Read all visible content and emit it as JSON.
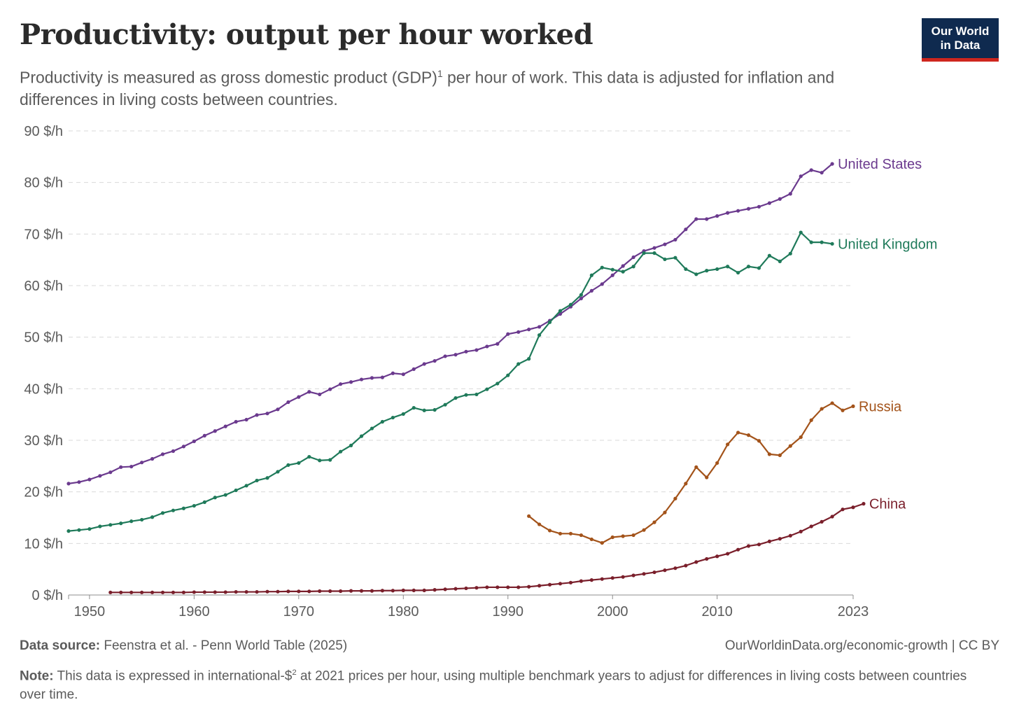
{
  "title": "Productivity: output per hour worked",
  "subtitle_pre": "Productivity is measured as gross domestic product (GDP)",
  "subtitle_sup": "1",
  "subtitle_post": " per hour of work. This data is adjusted for inflation and differences in living costs between countries.",
  "logo": {
    "line1": "Our World",
    "line2": "in Data",
    "bg_color": "#0f2a4f",
    "accent_color": "#ce261e"
  },
  "footer": {
    "source_label": "Data source:",
    "source_text": " Feenstra et al. - Penn World Table (2025)",
    "link_text": "OurWorldinData.org/economic-growth | CC BY",
    "note_label": "Note:",
    "note_pre": " This data is expressed in international-$",
    "note_sup": "2",
    "note_post": " at 2021 prices per hour, using multiple benchmark years to adjust for differences in living costs between countries over time."
  },
  "chart_data": {
    "type": "line",
    "title": "Productivity: output per hour worked",
    "xlabel": "",
    "ylabel": "",
    "xlim": [
      1948,
      2023
    ],
    "ylim": [
      0,
      90
    ],
    "x_ticks": [
      1950,
      1960,
      1970,
      1980,
      1990,
      2000,
      2010,
      2023
    ],
    "y_ticks": [
      0,
      10,
      20,
      30,
      40,
      50,
      60,
      70,
      80,
      90
    ],
    "y_tick_labels": [
      "0 $/h",
      "10 $/h",
      "20 $/h",
      "30 $/h",
      "40 $/h",
      "50 $/h",
      "60 $/h",
      "70 $/h",
      "80 $/h",
      "90 $/h"
    ],
    "grid": "horizontal dashed",
    "legend": "inline labels at line ends",
    "series": [
      {
        "name": "United States",
        "color": "#6b3a8e",
        "start_year": 1948,
        "values": [
          21.6,
          21.9,
          22.4,
          23.1,
          23.8,
          24.8,
          24.9,
          25.7,
          26.4,
          27.3,
          27.9,
          28.8,
          29.8,
          30.9,
          31.8,
          32.7,
          33.6,
          34.0,
          34.9,
          35.2,
          36.0,
          37.4,
          38.4,
          39.4,
          38.9,
          39.9,
          40.9,
          41.3,
          41.8,
          42.1,
          42.2,
          43.0,
          42.8,
          43.8,
          44.8,
          45.4,
          46.3,
          46.6,
          47.2,
          47.5,
          48.2,
          48.7,
          50.6,
          51.0,
          51.5,
          52.0,
          53.2,
          54.5,
          55.9,
          57.5,
          59.0,
          60.3,
          62.0,
          63.8,
          65.5,
          66.7,
          67.3,
          68.0,
          68.9,
          70.9,
          72.9,
          72.9,
          73.5,
          74.1,
          74.5,
          74.9,
          75.3,
          76.0,
          76.8,
          77.8,
          81.2,
          82.4,
          81.9,
          83.6
        ]
      },
      {
        "name": "United Kingdom",
        "color": "#1f7a5a",
        "start_year": 1948,
        "values": [
          12.4,
          12.6,
          12.8,
          13.3,
          13.6,
          13.9,
          14.3,
          14.6,
          15.1,
          15.9,
          16.4,
          16.8,
          17.3,
          18.0,
          18.9,
          19.4,
          20.3,
          21.2,
          22.2,
          22.7,
          23.9,
          25.2,
          25.6,
          26.8,
          26.1,
          26.2,
          27.8,
          29.0,
          30.8,
          32.3,
          33.6,
          34.4,
          35.1,
          36.3,
          35.8,
          35.9,
          36.9,
          38.2,
          38.8,
          38.9,
          39.9,
          41.0,
          42.6,
          44.8,
          45.8,
          50.4,
          52.9,
          55.1,
          56.3,
          58.2,
          62.0,
          63.5,
          63.1,
          62.7,
          63.7,
          66.3,
          66.3,
          65.1,
          65.4,
          63.2,
          62.2,
          62.9,
          63.2,
          63.7,
          62.5,
          63.7,
          63.4,
          65.8,
          64.7,
          66.2,
          70.3,
          68.4,
          68.4,
          68.1
        ]
      },
      {
        "name": "Russia",
        "color": "#a3531a",
        "start_year": 1992,
        "values": [
          15.3,
          13.7,
          12.5,
          11.9,
          11.9,
          11.6,
          10.8,
          10.1,
          11.2,
          11.4,
          11.6,
          12.6,
          14.1,
          16.0,
          18.7,
          21.6,
          24.8,
          22.8,
          25.6,
          29.2,
          31.5,
          31.0,
          29.9,
          27.3,
          27.1,
          28.9,
          30.6,
          33.9,
          36.1,
          37.2,
          35.8,
          36.6
        ]
      },
      {
        "name": "China",
        "color": "#7a1f2b",
        "start_year": 1952,
        "values": [
          0.5,
          0.5,
          0.5,
          0.5,
          0.5,
          0.5,
          0.5,
          0.5,
          0.55,
          0.55,
          0.55,
          0.55,
          0.6,
          0.6,
          0.6,
          0.65,
          0.65,
          0.7,
          0.7,
          0.7,
          0.75,
          0.75,
          0.75,
          0.8,
          0.8,
          0.8,
          0.85,
          0.85,
          0.9,
          0.9,
          0.9,
          1.0,
          1.1,
          1.2,
          1.3,
          1.4,
          1.5,
          1.5,
          1.5,
          1.5,
          1.6,
          1.8,
          2.0,
          2.2,
          2.4,
          2.7,
          2.9,
          3.1,
          3.3,
          3.5,
          3.8,
          4.1,
          4.4,
          4.8,
          5.2,
          5.7,
          6.4,
          7.0,
          7.5,
          8.0,
          8.8,
          9.5,
          9.8,
          10.4,
          10.9,
          11.5,
          12.3,
          13.3,
          14.2,
          15.2,
          16.6,
          17.0,
          17.7
        ]
      }
    ]
  }
}
